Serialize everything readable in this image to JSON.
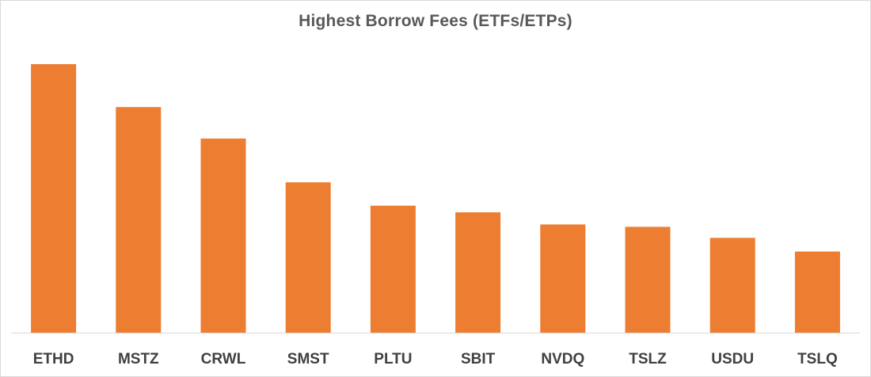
{
  "chart_data": {
    "type": "bar",
    "title": "Highest Borrow Fees (ETFs/ETPs)",
    "categories": [
      "ETHD",
      "MSTZ",
      "CRWL",
      "SMST",
      "PLTU",
      "SBIT",
      "NVDQ",
      "TSLZ",
      "USDU",
      "TSLQ"
    ],
    "values": [
      100,
      84,
      72.3,
      56,
      47.3,
      44.8,
      40.3,
      39.4,
      35.3,
      30.2
    ],
    "ylim": [
      0,
      100
    ],
    "xlabel": "",
    "ylabel": "",
    "grid": false,
    "bar_color": "#ed7d31",
    "axis_color": "#d9d9d9"
  }
}
